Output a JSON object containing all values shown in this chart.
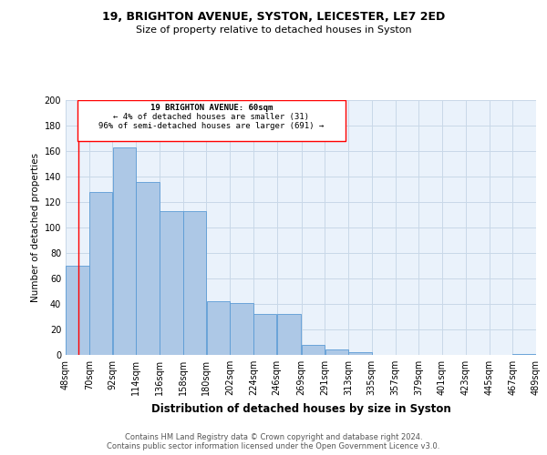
{
  "title1": "19, BRIGHTON AVENUE, SYSTON, LEICESTER, LE7 2ED",
  "title2": "Size of property relative to detached houses in Syston",
  "xlabel": "Distribution of detached houses by size in Syston",
  "ylabel": "Number of detached properties",
  "annotation_line1": "19 BRIGHTON AVENUE: 60sqm",
  "annotation_line2": "← 4% of detached houses are smaller (31)",
  "annotation_line3": "96% of semi-detached houses are larger (691) →",
  "footer1": "Contains HM Land Registry data © Crown copyright and database right 2024.",
  "footer2": "Contains public sector information licensed under the Open Government Licence v3.0.",
  "bar_left_edges": [
    48,
    70,
    92,
    114,
    136,
    158,
    180,
    202,
    224,
    246,
    269,
    291,
    313,
    335,
    357,
    379,
    401,
    423,
    445,
    467
  ],
  "bar_widths": [
    22,
    22,
    22,
    22,
    22,
    22,
    22,
    22,
    22,
    23,
    22,
    22,
    22,
    22,
    22,
    22,
    22,
    22,
    22,
    22
  ],
  "bar_heights": [
    70,
    128,
    163,
    136,
    113,
    113,
    42,
    41,
    32,
    32,
    8,
    4,
    2,
    0,
    0,
    0,
    0,
    0,
    0,
    1
  ],
  "bar_color": "#adc8e6",
  "bar_edge_color": "#5b9bd5",
  "grid_color": "#c8d8e8",
  "background_color": "#eaf2fb",
  "marker_x": 60,
  "marker_color": "red",
  "xlim": [
    48,
    489
  ],
  "ylim": [
    0,
    200
  ],
  "yticks": [
    0,
    20,
    40,
    60,
    80,
    100,
    120,
    140,
    160,
    180,
    200
  ],
  "xtick_labels": [
    "48sqm",
    "70sqm",
    "92sqm",
    "114sqm",
    "136sqm",
    "158sqm",
    "180sqm",
    "202sqm",
    "224sqm",
    "246sqm",
    "269sqm",
    "291sqm",
    "313sqm",
    "335sqm",
    "357sqm",
    "379sqm",
    "401sqm",
    "423sqm",
    "445sqm",
    "467sqm",
    "489sqm"
  ],
  "xtick_positions": [
    48,
    70,
    92,
    114,
    136,
    158,
    180,
    202,
    224,
    246,
    269,
    291,
    313,
    335,
    357,
    379,
    401,
    423,
    445,
    467,
    489
  ]
}
